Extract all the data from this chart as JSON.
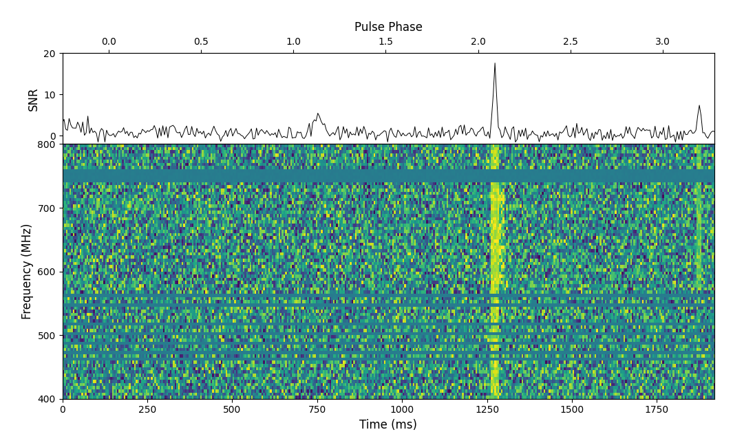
{
  "time_min": 0,
  "time_max": 1920,
  "freq_min": 400,
  "freq_max": 800,
  "pulse_phase_min": -0.25,
  "pulse_phase_max": 3.28,
  "snr_min": -2,
  "snr_max": 20,
  "snr_yticks": [
    0,
    10,
    20
  ],
  "time_xticks": [
    0,
    250,
    500,
    750,
    1000,
    1250,
    1500,
    1750
  ],
  "freq_yticks": [
    400,
    500,
    600,
    700,
    800
  ],
  "pulse_phase_xticks": [
    0.0,
    0.5,
    1.0,
    1.5,
    2.0,
    2.5,
    3.0
  ],
  "xlabel_time": "Time (ms)",
  "xlabel_phase": "Pulse Phase",
  "ylabel_snr": "SNR",
  "ylabel_freq": "Frequency (MHz)",
  "colormap": "viridis",
  "n_time_bins": 384,
  "n_freq_bins": 80,
  "pulse_time_ms": 1270,
  "pulse2_time_ms": 1870,
  "snr_peak1": 17.0,
  "snr_peak2": 5.5,
  "snr_peak3": 4.5,
  "snr_peak3_time": 750,
  "background_color": "#ffffff",
  "line_color": "#000000",
  "teal_band_rfi_value": 0.45,
  "teal_solid_band_value": 0.42,
  "active_data_mean": 0.45,
  "active_data_std": 0.28
}
